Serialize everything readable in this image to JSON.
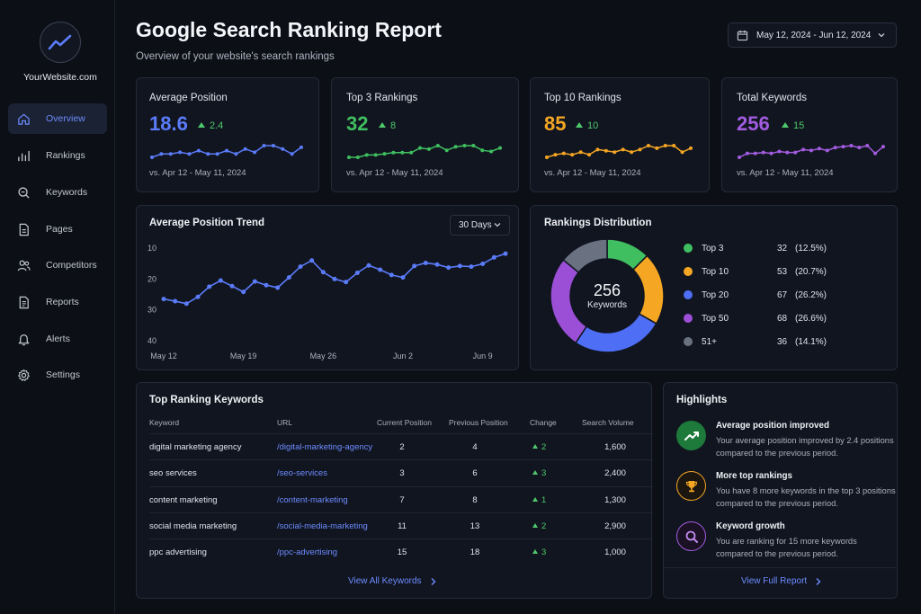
{
  "sidebar": {
    "site_name": "YourWebsite.com",
    "items": [
      {
        "label": "Overview",
        "icon": "home-icon",
        "active": true
      },
      {
        "label": "Rankings",
        "icon": "bar-chart-icon",
        "active": false
      },
      {
        "label": "Keywords",
        "icon": "search-icon",
        "active": false
      },
      {
        "label": "Pages",
        "icon": "document-icon",
        "active": false
      },
      {
        "label": "Competitors",
        "icon": "users-icon",
        "active": false
      },
      {
        "label": "Reports",
        "icon": "report-icon",
        "active": false
      },
      {
        "label": "Alerts",
        "icon": "bell-icon",
        "active": false
      },
      {
        "label": "Settings",
        "icon": "gear-icon",
        "active": false
      }
    ]
  },
  "header": {
    "title": "Google Search Ranking Report",
    "subtitle": "Overview of your website's search rankings",
    "date_range": "May 12, 2024 - Jun 12, 2024"
  },
  "kpis": [
    {
      "title": "Average Position",
      "value": "18.6",
      "delta": "2.4",
      "compare": "vs. Apr 12 - May 11, 2024",
      "color": "#5b7cfa",
      "spark": [
        6,
        7,
        7,
        7.5,
        7,
        8,
        7,
        7,
        8,
        7,
        8.5,
        7.5,
        9.5,
        9.5,
        8.5,
        7,
        9
      ]
    },
    {
      "title": "Top 3 Rankings",
      "value": "32",
      "delta": "8",
      "compare": "vs. Apr 12 - May 11, 2024",
      "color": "#3fbf5f",
      "spark": [
        5,
        5,
        6,
        6,
        6.5,
        7,
        7,
        7,
        9,
        8.5,
        10,
        8,
        9.5,
        10,
        10,
        8,
        7.5,
        9
      ]
    },
    {
      "title": "Top 10 Rankings",
      "value": "85",
      "delta": "10",
      "compare": "vs. Apr 12 - May 11, 2024",
      "color": "#f5a623",
      "spark": [
        5,
        6,
        6.5,
        6,
        7,
        6,
        8,
        7.5,
        7,
        8,
        7,
        8,
        9.5,
        8.5,
        9.5,
        9.5,
        7,
        8.5
      ]
    },
    {
      "title": "Total Keywords",
      "value": "256",
      "delta": "15",
      "compare": "vs. Apr 12 - May 11, 2024",
      "color": "#a25ce0",
      "spark": [
        4,
        6,
        6,
        6.5,
        6,
        7,
        6.5,
        6.5,
        8,
        7.5,
        8.5,
        7.5,
        9,
        9.5,
        10,
        9,
        10,
        6,
        9.5
      ]
    }
  ],
  "trend": {
    "title": "Average Position Trend",
    "range": "30 Days",
    "color": "#5b7cfa"
  },
  "chart_data": {
    "type": "line",
    "title": "Average Position Trend",
    "y_ticks": [
      "10",
      "20",
      "30",
      "40"
    ],
    "ylim": [
      10,
      40
    ],
    "y_inverted": true,
    "x_tick_labels": [
      "May 12",
      "May 19",
      "May 26",
      "Jun 2",
      "Jun 9"
    ],
    "x": [
      0,
      1,
      2,
      3,
      4,
      5,
      6,
      7,
      8,
      9,
      10,
      11,
      12,
      13,
      14,
      15,
      16,
      17,
      18,
      19,
      20,
      21,
      22,
      23,
      24,
      25,
      26,
      27,
      28,
      29,
      30
    ],
    "x_tick_positions": [
      0,
      7,
      14,
      21,
      28
    ],
    "values": [
      26.5,
      27.2,
      28.0,
      25.8,
      22.5,
      20.5,
      22.3,
      24.2,
      20.8,
      22.0,
      22.8,
      19.5,
      16.0,
      14.0,
      17.8,
      20.0,
      21.0,
      18.0,
      15.6,
      17.0,
      18.7,
      19.5,
      15.8,
      14.8,
      15.3,
      16.3,
      15.8,
      16.0,
      15.1,
      13.0,
      11.8
    ],
    "series": [
      {
        "name": "Average Position"
      }
    ]
  },
  "distribution": {
    "title": "Rankings Distribution",
    "total": "256",
    "total_label": "Keywords",
    "segments": [
      {
        "label": "Top 3",
        "count": "32",
        "pct": "(12.5%)",
        "value": 32,
        "color": "#3fbf5f"
      },
      {
        "label": "Top 10",
        "count": "53",
        "pct": "(20.7%)",
        "value": 53,
        "color": "#f5a623"
      },
      {
        "label": "Top 20",
        "count": "67",
        "pct": "(26.2%)",
        "value": 67,
        "color": "#4d6ef5"
      },
      {
        "label": "Top 50",
        "count": "68",
        "pct": "(26.6%)",
        "value": 68,
        "color": "#9a4fd6"
      },
      {
        "label": "51+",
        "count": "36",
        "pct": "(14.1%)",
        "value": 36,
        "color": "#6a7282"
      }
    ]
  },
  "keywords_table": {
    "title": "Top Ranking Keywords",
    "columns": [
      "Keyword",
      "URL",
      "Current Position",
      "Previous Position",
      "Change",
      "Search Volume"
    ],
    "rows": [
      {
        "keyword": "digital marketing agency",
        "url": "/digital-marketing-agency",
        "current": "2",
        "previous": "4",
        "change": "2",
        "volume": "1,600"
      },
      {
        "keyword": "seo services",
        "url": "/seo-services",
        "current": "3",
        "previous": "6",
        "change": "3",
        "volume": "2,400"
      },
      {
        "keyword": "content marketing",
        "url": "/content-marketing",
        "current": "7",
        "previous": "8",
        "change": "1",
        "volume": "1,300"
      },
      {
        "keyword": "social media marketing",
        "url": "/social-media-marketing",
        "current": "11",
        "previous": "13",
        "change": "2",
        "volume": "2,900"
      },
      {
        "keyword": "ppc advertising",
        "url": "/ppc-advertising",
        "current": "15",
        "previous": "18",
        "change": "3",
        "volume": "1,000"
      }
    ],
    "view_all": "View All Keywords"
  },
  "highlights": {
    "title": "Highlights",
    "items": [
      {
        "title": "Average position improved",
        "desc": "Your average position improved by 2.4 positions compared to the previous period.",
        "icon": "trend-up-icon",
        "color": "#3fbf5f"
      },
      {
        "title": "More top rankings",
        "desc": "You have 8 more keywords in the top 3 positions compared to the previous period.",
        "icon": "trophy-icon",
        "color": "#f5a623"
      },
      {
        "title": "Keyword growth",
        "desc": "You are ranking for 15 more keywords compared to the previous period.",
        "icon": "search-icon",
        "color": "#a25ce0"
      }
    ],
    "view_full": "View Full Report"
  }
}
